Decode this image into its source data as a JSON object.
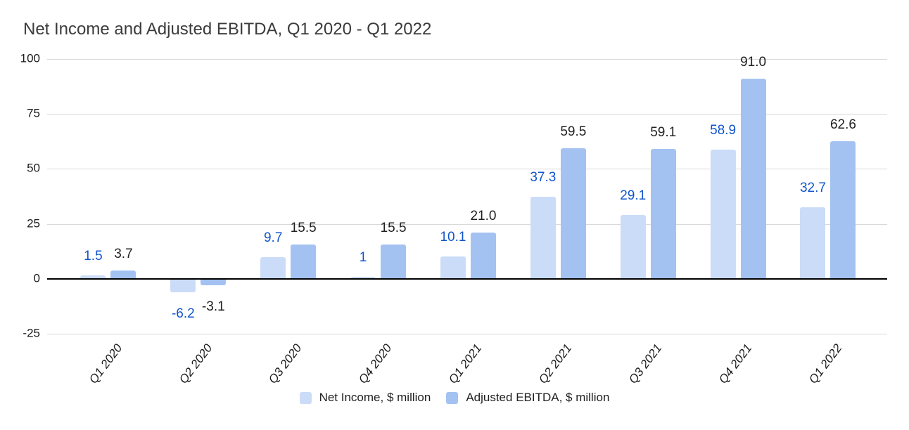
{
  "chart_data": {
    "type": "bar",
    "title": "Net Income and Adjusted EBITDA, Q1 2020 - Q1 2022",
    "categories": [
      "Q1 2020",
      "Q2 2020",
      "Q3 2020",
      "Q4 2020",
      "Q1 2021",
      "Q2 2021",
      "Q3 2021",
      "Q4 2021",
      "Q1 2022"
    ],
    "series": [
      {
        "name": "Net Income, $ million",
        "color": "#cbdcf8",
        "label_color": "#1155cc",
        "values": [
          1.5,
          -6.2,
          9.7,
          1,
          10.1,
          37.3,
          29.1,
          58.9,
          32.7
        ],
        "labels": [
          "1.5",
          "-6.2",
          "9.7",
          "1",
          "10.1",
          "37.3",
          "29.1",
          "58.9",
          "32.7"
        ]
      },
      {
        "name": "Adjusted EBITDA, $ million",
        "color": "#a4c2f1",
        "label_color": "#212121",
        "values": [
          3.7,
          -3.1,
          15.5,
          15.5,
          21.0,
          59.5,
          59.1,
          91.0,
          62.6
        ],
        "labels": [
          "3.7",
          "-3.1",
          "15.5",
          "15.5",
          "21.0",
          "59.5",
          "59.1",
          "91.0",
          "62.6"
        ]
      }
    ],
    "yticks": [
      100,
      75,
      50,
      25,
      0,
      -25
    ],
    "ytick_labels": [
      "100",
      "75",
      "50",
      "25",
      "0",
      "-25"
    ],
    "ylim": [
      -25,
      100
    ],
    "grid": true,
    "legend_position": "bottom",
    "bar_value_labels": true
  },
  "colors": {
    "background": "#ffffff",
    "gridline": "#d9d9d9",
    "zero_axis": "#000000",
    "tick_text": "#1a1a1a",
    "title_text": "#3b3b3b"
  }
}
